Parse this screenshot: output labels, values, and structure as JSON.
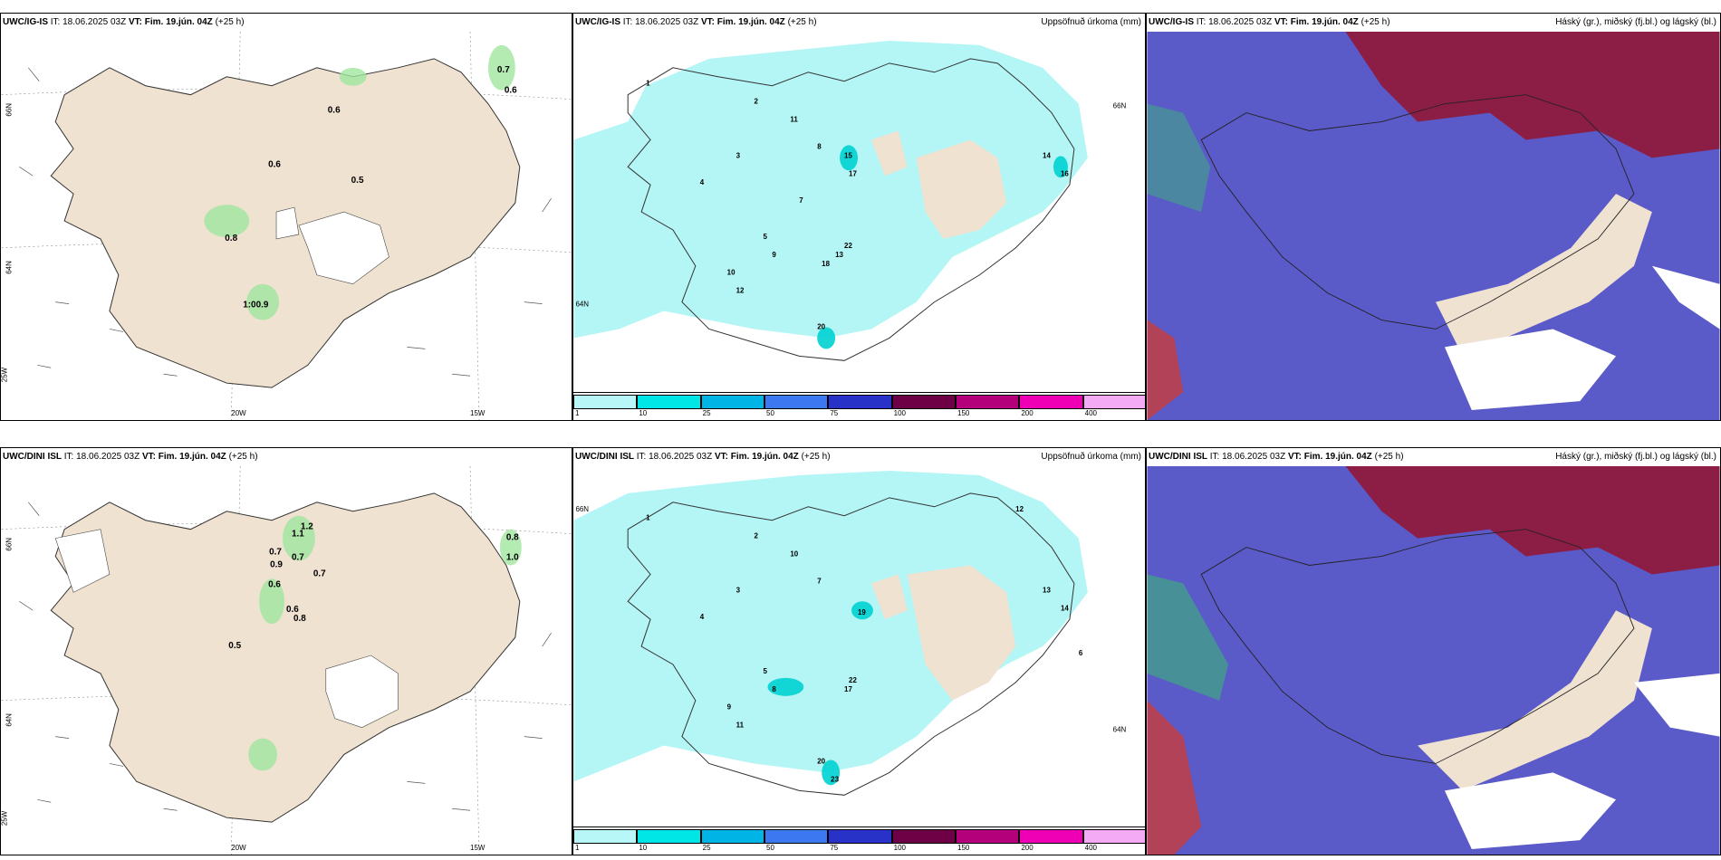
{
  "rows": [
    {
      "model": "UWC/IG-IS",
      "it_label": "IT:",
      "it_value": "18.06.2025 03Z",
      "vt_label": "VT:",
      "vt_value": "Fim. 19.jún. 04Z",
      "lead": "(+25 h)",
      "wind_numbers": [
        "0.7",
        "0.6",
        "0.6",
        "0.6",
        "0.5",
        "0.8",
        "1:00.9"
      ],
      "lat_labels": [
        "66N",
        "64N"
      ],
      "lon_labels": [
        "25W",
        "20W",
        "15W"
      ],
      "precip_numbers": [
        "1",
        "2",
        "3",
        "4",
        "5",
        "7",
        "8",
        "9",
        "10",
        "11",
        "12",
        "13",
        "14",
        "15",
        "16",
        "17",
        "18",
        "20",
        "22"
      ]
    },
    {
      "model": "UWC/DINI ISL",
      "it_label": "IT:",
      "it_value": "18.06.2025 03Z",
      "vt_label": "VT:",
      "vt_value": "Fim. 19.jún. 04Z",
      "lead": "(+25 h)",
      "wind_numbers": [
        "1.2",
        "1.1",
        "0.7",
        "0.7",
        "0.9",
        "0.6",
        "0.7",
        "0.6",
        "0.8",
        "0.8",
        "1.0",
        "0.5"
      ],
      "lat_labels": [
        "66N",
        "64N"
      ],
      "lon_labels": [
        "25W",
        "20W",
        "15W"
      ],
      "precip_numbers": [
        "1",
        "2",
        "3",
        "4",
        "5",
        "6",
        "7",
        "8",
        "9",
        "10",
        "11",
        "12",
        "13",
        "14",
        "17",
        "19",
        "20",
        "22",
        "23"
      ]
    }
  ],
  "precip_title": "Uppsöfnuð úrkoma (mm)",
  "cloud_title": "Háský (gr.), miðský (fj.bl.) og lágský (bl.)",
  "colorbar": {
    "labels": [
      "1",
      "10",
      "25",
      "50",
      "75",
      "100",
      "150",
      "200",
      "400"
    ],
    "colors": [
      "#b8f7f7",
      "#00e6e6",
      "#00b4e6",
      "#3c78f0",
      "#2832c8",
      "#6e0046",
      "#b4007a",
      "#f000b4",
      "#f5aaf5"
    ]
  },
  "colors": {
    "land": "#efe2d1",
    "cloud_low": "#5a5ac8",
    "cloud_mid": "#8c1e46",
    "cloud_high_green": "#3cb478",
    "precip_light": "#b4f5f5",
    "precip_mid": "#00d2d2",
    "wind_green": "#a0e6a0"
  }
}
